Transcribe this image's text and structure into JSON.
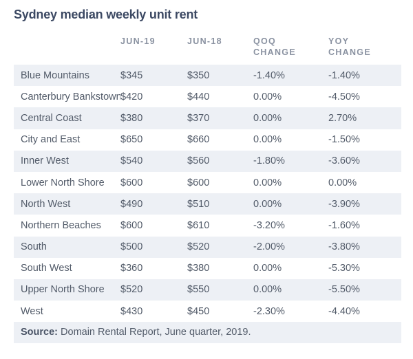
{
  "title": "Sydney median weekly unit rent",
  "footer": {
    "source_label": "Source:",
    "source_text": "Domain Rental Report, June quarter, 2019."
  },
  "colors": {
    "row_shade": "#edf0f5",
    "title_text": "#3c4963",
    "body_text": "#525b69",
    "header_text": "#8a92a1",
    "page_background": "#ffffff"
  },
  "chart_data": {
    "type": "table",
    "title": "Sydney median weekly unit rent",
    "columns": [
      "",
      "JUN-19",
      "JUN-18",
      "QOQ CHANGE",
      "YOY CHANGE"
    ],
    "rows": [
      [
        "Blue Mountains",
        "$345",
        "$350",
        "-1.40%",
        "-1.40%"
      ],
      [
        "Canterbury Bankstown",
        "$420",
        "$440",
        "0.00%",
        "-4.50%"
      ],
      [
        "Central Coast",
        "$380",
        "$370",
        "0.00%",
        "2.70%"
      ],
      [
        "City and East",
        "$650",
        "$660",
        "0.00%",
        "-1.50%"
      ],
      [
        "Inner West",
        "$540",
        "$560",
        "-1.80%",
        "-3.60%"
      ],
      [
        "Lower North Shore",
        "$600",
        "$600",
        "0.00%",
        "0.00%"
      ],
      [
        "North West",
        "$490",
        "$510",
        "0.00%",
        "-3.90%"
      ],
      [
        "Northern Beaches",
        "$600",
        "$610",
        "-3.20%",
        "-1.60%"
      ],
      [
        "South",
        "$500",
        "$520",
        "-2.00%",
        "-3.80%"
      ],
      [
        "South West",
        "$360",
        "$380",
        "0.00%",
        "-5.30%"
      ],
      [
        "Upper North Shore",
        "$520",
        "$550",
        "0.00%",
        "-5.50%"
      ],
      [
        "West",
        "$430",
        "$450",
        "-2.30%",
        "-4.40%"
      ]
    ],
    "source": "Source: Domain Rental Report, June quarter, 2019.",
    "layout": {
      "row_striping": "first-row-shaded-alternating",
      "values_alignment": "left",
      "grid": "off"
    }
  }
}
